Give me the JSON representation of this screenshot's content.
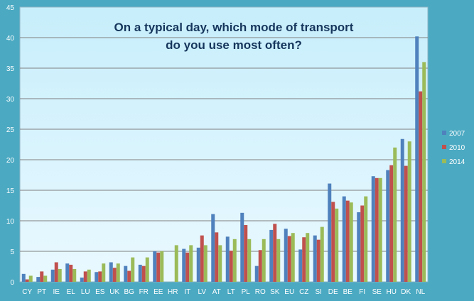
{
  "chart_data": {
    "type": "bar",
    "title_lines": [
      "On a typical day, which mode of transport",
      "do you use most often?"
    ],
    "xlabel": "",
    "ylabel": "",
    "ylim": [
      0,
      45
    ],
    "yticks": [
      0,
      5,
      10,
      15,
      20,
      25,
      30,
      35,
      40,
      45
    ],
    "grid": true,
    "legend_position": "right",
    "categories": [
      "CY",
      "PT",
      "IE",
      "EL",
      "LU",
      "ES",
      "UK",
      "BG",
      "FR",
      "EE",
      "HR",
      "IT",
      "LV",
      "AT",
      "LT",
      "PL",
      "RO",
      "SK",
      "EU",
      "CZ",
      "SI",
      "DE",
      "BE",
      "FI",
      "SE",
      "HU",
      "DK",
      "NL"
    ],
    "series": [
      {
        "name": "2007",
        "color": "#4f81bd",
        "values": [
          1.3,
          0.8,
          2.0,
          3.0,
          0.7,
          1.6,
          3.2,
          2.6,
          2.8,
          5.0,
          null,
          5.4,
          5.6,
          11.1,
          7.4,
          11.3,
          2.6,
          8.5,
          8.7,
          5.3,
          7.6,
          16.1,
          14.0,
          11.4,
          17.3,
          18.3,
          23.4,
          40.2
        ]
      },
      {
        "name": "2010",
        "color": "#c0504d",
        "values": [
          0.4,
          1.7,
          3.2,
          2.8,
          1.7,
          1.7,
          2.3,
          1.8,
          2.6,
          4.8,
          null,
          4.8,
          7.6,
          8.1,
          5.1,
          9.3,
          5.2,
          9.5,
          7.5,
          7.3,
          6.9,
          13.1,
          13.3,
          12.5,
          17.0,
          19.1,
          19.0,
          31.2
        ]
      },
      {
        "name": "2014",
        "color": "#9bbb59",
        "values": [
          1.0,
          1.0,
          2.1,
          2.1,
          2.0,
          3.0,
          3.0,
          4.0,
          4.0,
          5.0,
          6.0,
          6.0,
          6.0,
          6.0,
          7.0,
          7.0,
          7.0,
          7.0,
          8.0,
          8.0,
          9.0,
          12.0,
          13.0,
          14.0,
          17.0,
          22.0,
          23.0,
          36.0
        ]
      }
    ]
  }
}
